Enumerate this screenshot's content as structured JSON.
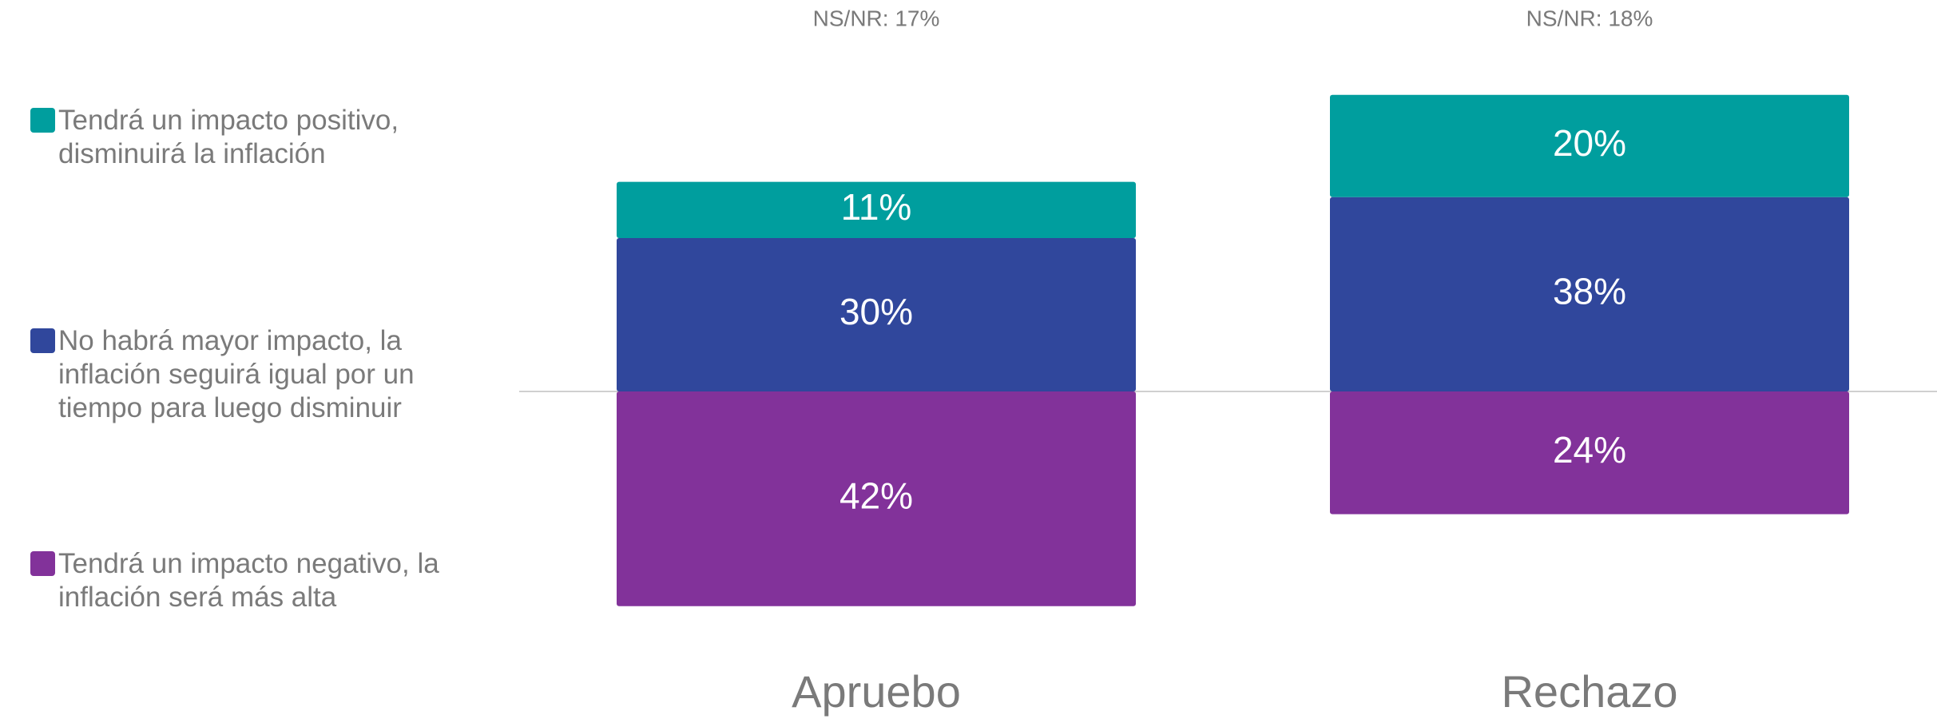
{
  "chart_data": {
    "type": "bar",
    "stacked": true,
    "categories": [
      "Apruebo",
      "Rechazo"
    ],
    "annotations": [
      "NS/NR: 17%",
      "NS/NR: 18%"
    ],
    "series": [
      {
        "name": "Tendrá un impacto positivo, disminuirá la inflación",
        "color": "#009e9e",
        "values": [
          11,
          20
        ],
        "value_labels": [
          "11%",
          "20%"
        ]
      },
      {
        "name": "No habrá mayor impacto, la inflación seguirá igual por un tiempo para luego disminuir",
        "color": "#30479c",
        "values": [
          30,
          38
        ],
        "value_labels": [
          "30%",
          "38%"
        ]
      },
      {
        "name": "Tendrá un impacto negativo, la inflación será más alta",
        "color": "#82329a",
        "values": [
          42,
          24
        ],
        "value_labels": [
          "42%",
          "24%"
        ]
      }
    ],
    "legend": "left"
  }
}
